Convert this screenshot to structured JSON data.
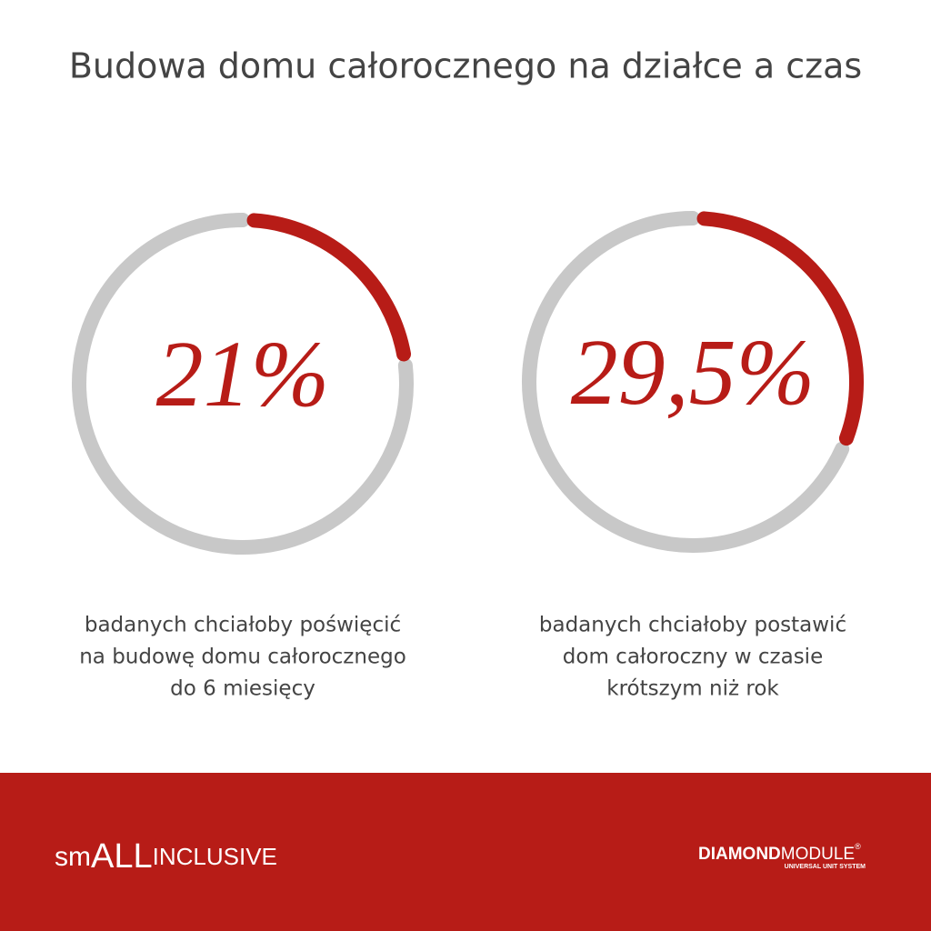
{
  "title": "Budowa domu całorocznego na działce a czas",
  "chart_data": [
    {
      "type": "donut",
      "values": [
        21
      ],
      "value_labels": [
        "21%"
      ],
      "ylim": [
        0,
        100
      ],
      "color": "#b71c17",
      "track_color": "#c8c8c8",
      "caption": [
        "badanych chciałoby poświęcić",
        "na budowę domu całorocznego",
        "do 6 miesięcy"
      ]
    },
    {
      "type": "donut",
      "values": [
        29.5
      ],
      "value_labels": [
        "29,5%"
      ],
      "ylim": [
        0,
        100
      ],
      "color": "#b71c17",
      "track_color": "#c8c8c8",
      "caption": [
        "badanych chciałoby postawić",
        "dom całoroczny w czasie",
        "krótszym niż rok"
      ]
    }
  ],
  "footer": {
    "brand_left": [
      "sm",
      "ALL",
      "INCLUSIVE"
    ],
    "brand_right": [
      "DIAMOND",
      "MODULE",
      "®",
      "UNIVERSAL UNIT SYSTEM"
    ]
  }
}
